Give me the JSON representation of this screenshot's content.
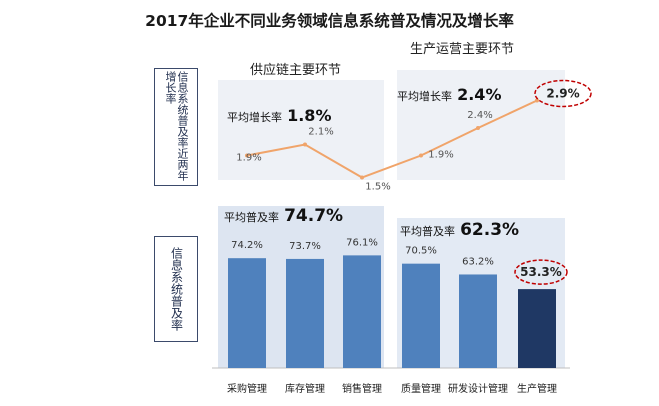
{
  "title": "2017年企业不同业务领域信息系统普及情况及增长率",
  "side_labels": {
    "growth": "信息系统普及率近两年增长率",
    "penetration": "信息系统普及率"
  },
  "sections": {
    "supply": {
      "title": "供应链主要环节",
      "avg_growth_label": "平均增长率",
      "avg_growth_value": "1.8%",
      "avg_pen_label": "平均普及率",
      "avg_pen_value": "74.7%"
    },
    "production": {
      "title": "生产运营主要环节",
      "avg_growth_label": "平均增长率",
      "avg_growth_value": "2.4%",
      "avg_pen_label": "平均普及率",
      "avg_pen_value": "62.3%"
    }
  },
  "colors": {
    "bar": "#4f81bd",
    "bar_highlight": "#1f3864",
    "line": "#f0a46a",
    "highlight_ring": "#c00000",
    "panel": "#eef1f6"
  },
  "chart_data": [
    {
      "type": "line",
      "title": "信息系统普及率近两年增长率",
      "categories": [
        "采购管理",
        "库存管理",
        "销售管理",
        "质量管理",
        "研发设计管理",
        "生产管理"
      ],
      "values": [
        1.9,
        2.1,
        1.5,
        1.9,
        2.4,
        2.9
      ],
      "labels": [
        "1.9%",
        "2.1%",
        "1.5%",
        "1.9%",
        "2.4%",
        "2.9%"
      ],
      "unit": "%",
      "highlight_index": 5
    },
    {
      "type": "bar",
      "title": "信息系统普及率",
      "categories": [
        "采购管理",
        "库存管理",
        "销售管理",
        "质量管理",
        "研发设计管理",
        "生产管理"
      ],
      "values": [
        74.2,
        73.7,
        76.1,
        70.5,
        63.2,
        53.3
      ],
      "labels": [
        "74.2%",
        "73.7%",
        "76.1%",
        "70.5%",
        "63.2%",
        "53.3%"
      ],
      "unit": "%",
      "highlight_index": 5
    }
  ]
}
